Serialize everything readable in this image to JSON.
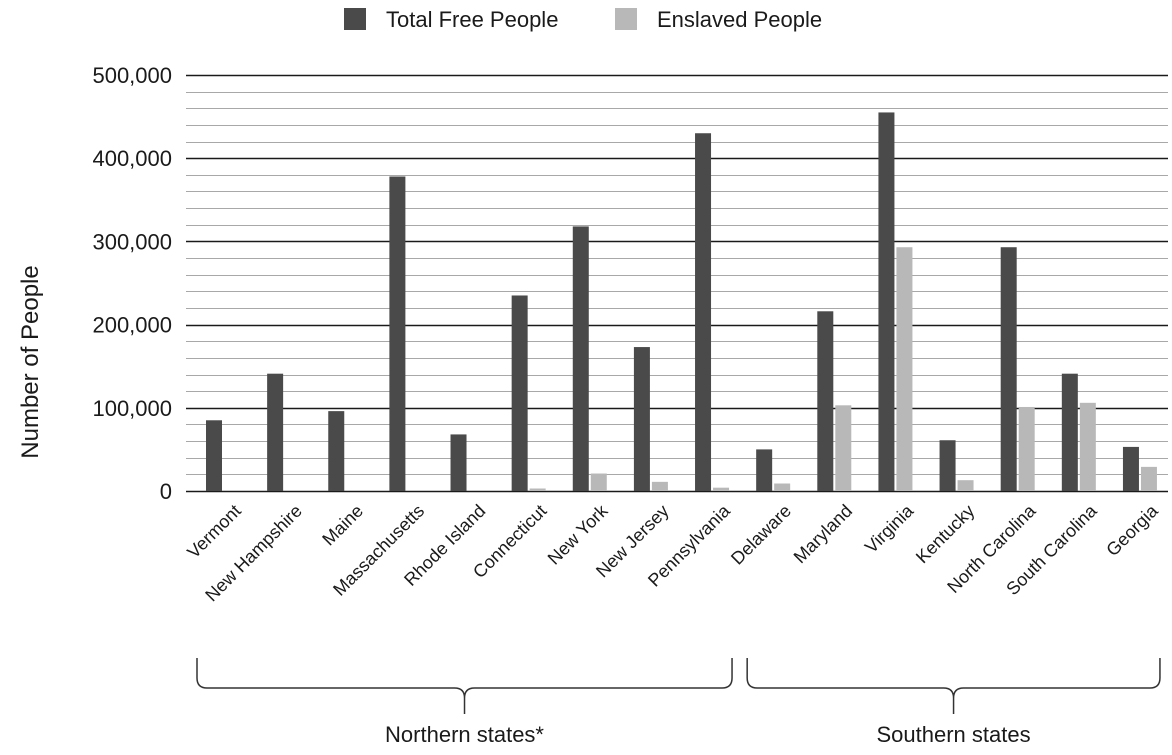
{
  "chart_data": {
    "type": "bar",
    "title": "",
    "xlabel": "",
    "ylabel": "Number of People",
    "ylim": [
      0,
      500000
    ],
    "y_ticks": [
      "500,000",
      "400,000",
      "300,000",
      "200,000",
      "100,000",
      "0"
    ],
    "y_tick_values": [
      500000,
      400000,
      300000,
      200000,
      100000,
      0
    ],
    "minor_gridlines_per_major": 4,
    "grid": true,
    "legend_position": "top",
    "categories": [
      "Vermont",
      "New Hampshire",
      "Maine",
      "Massachusetts",
      "Rhode Island",
      "Connecticut",
      "New York",
      "New Jersey",
      "Pennsylvania",
      "Delaware",
      "Maryland",
      "Virginia",
      "Kentucky",
      "North Carolina",
      "South Carolina",
      "Georgia"
    ],
    "series": [
      {
        "name": "Total Free People",
        "color": "#4a4a4a",
        "values": [
          85000,
          141000,
          96000,
          378000,
          68000,
          235000,
          318000,
          173000,
          430000,
          50000,
          216000,
          455000,
          61000,
          293000,
          141000,
          53000
        ]
      },
      {
        "name": "Enslaved People",
        "color": "#b8b8b8",
        "values": [
          0,
          0,
          0,
          0,
          0,
          3000,
          21000,
          11000,
          4000,
          9000,
          103000,
          293000,
          13000,
          101000,
          106000,
          29000
        ]
      }
    ],
    "groups": [
      {
        "label": "Northern states*",
        "from": "Vermont",
        "to": "Pennsylvania"
      },
      {
        "label": "Southern states",
        "from": "Delaware",
        "to": "Georgia"
      }
    ]
  }
}
